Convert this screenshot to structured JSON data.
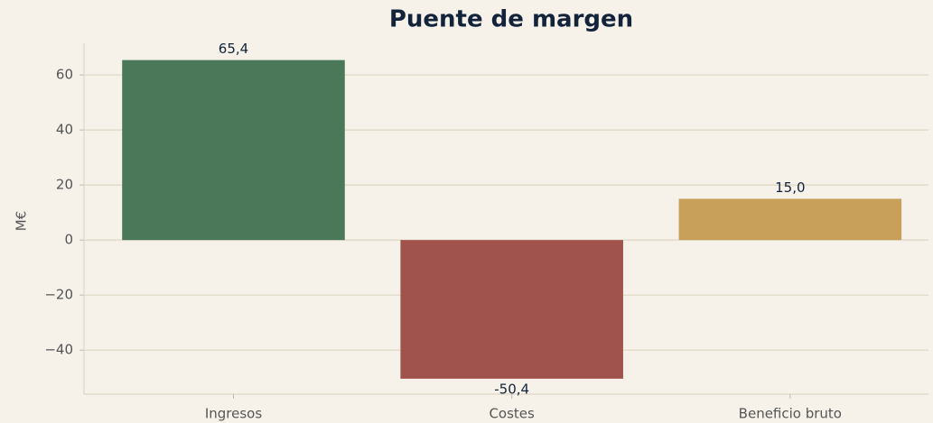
{
  "chart_data": {
    "type": "bar",
    "title": "Puente de margen",
    "ylabel": "M€",
    "categories": [
      "Ingresos",
      "Costes",
      "Beneficio bruto"
    ],
    "values": [
      65.4,
      -50.4,
      15.0
    ],
    "value_labels": [
      "65,4",
      "-50,4",
      "15,0"
    ],
    "colors": [
      "#4a7858",
      "#a0524c",
      "#c9a05a"
    ],
    "ylim": [
      -56,
      71.5
    ],
    "yticks": [
      {
        "value": -40,
        "label": "−40"
      },
      {
        "value": -20,
        "label": "−20"
      },
      0,
      20,
      40,
      60
    ],
    "grid": true
  }
}
